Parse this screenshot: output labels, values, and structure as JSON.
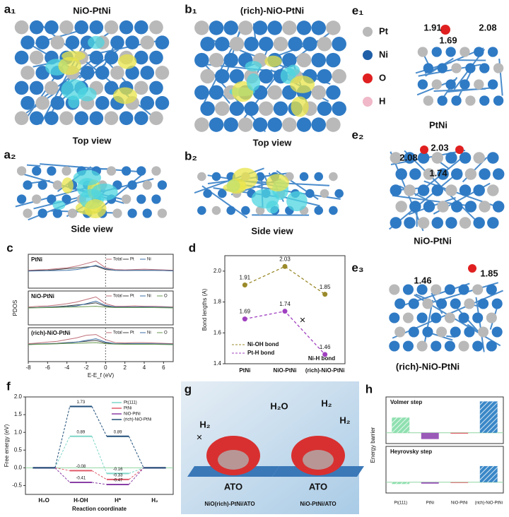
{
  "panels": {
    "a1": {
      "label": "a₁",
      "title": "NiO-PtNi",
      "caption": "Top view"
    },
    "a2": {
      "label": "a₂",
      "caption": "Side view"
    },
    "b1": {
      "label": "b₁",
      "title": "(rich)-NiO-PtNi",
      "caption": "Top view"
    },
    "b2": {
      "label": "b₂",
      "caption": "Side view"
    },
    "e1": {
      "label": "e₁",
      "legend": [
        "Pt",
        "Ni",
        "O",
        "H"
      ],
      "bonds": [
        1.91,
        1.69,
        2.08
      ],
      "caption": "PtNi"
    },
    "e2": {
      "label": "e₂",
      "bonds": [
        2.08,
        2.03,
        1.74
      ],
      "caption": "NiO-PtNi"
    },
    "e3": {
      "label": "e₃",
      "bonds": [
        1.46,
        1.85
      ],
      "caption": "(rich)-NiO-PtNi"
    },
    "g": {
      "label": "g",
      "h2_left": "H₂",
      "h2o": "H₂O",
      "h2_right": [
        "H₂",
        "H₂"
      ],
      "ato": [
        "ATO",
        "ATO"
      ],
      "captions": [
        "NiO(rich)-PtNi/ATO",
        "NiO-PtNi/ATO"
      ]
    }
  },
  "chart_data": [
    {
      "type": "line",
      "label": "c",
      "title": "PtNi",
      "x": [
        -8,
        -7,
        -6,
        -5,
        -4,
        -3,
        -2,
        -1,
        0,
        1,
        2,
        3,
        4,
        5,
        6,
        7
      ],
      "xlim": [
        -8,
        7
      ],
      "ylim": [
        -1,
        1
      ],
      "series": [
        {
          "name": "Total",
          "color": "#c0707a",
          "values": [
            0.05,
            0.08,
            0.1,
            0.15,
            0.2,
            0.3,
            0.45,
            0.6,
            0.2,
            0.1,
            0.08,
            0.1,
            0.12,
            0.1,
            0.08,
            0.05
          ]
        },
        {
          "name": "Pt",
          "color": "#444444",
          "values": [
            0.02,
            0.04,
            0.05,
            0.1,
            0.15,
            0.2,
            0.25,
            0.3,
            0.1,
            0.05,
            0.04,
            0.05,
            0.05,
            0.05,
            0.04,
            0.03
          ]
        },
        {
          "name": "Ni",
          "color": "#3a6ea5",
          "values": [
            0.01,
            0.02,
            0.03,
            0.04,
            0.05,
            0.1,
            0.2,
            0.35,
            0.15,
            0.05,
            0.04,
            0.05,
            0.06,
            0.05,
            0.04,
            0.02
          ]
        }
      ]
    },
    {
      "type": "line",
      "title": "NiO-PtNi",
      "ylabel": "PDOS",
      "x": [
        -8,
        -7,
        -6,
        -5,
        -4,
        -3,
        -2,
        -1,
        0,
        1,
        2,
        3,
        4,
        5,
        6,
        7
      ],
      "xlim": [
        -8,
        7
      ],
      "ylim": [
        -1,
        1
      ],
      "series": [
        {
          "name": "Total",
          "color": "#c0707a",
          "values": [
            0.05,
            0.1,
            0.12,
            0.18,
            0.25,
            0.35,
            0.5,
            0.65,
            0.25,
            0.1,
            0.1,
            0.12,
            0.1,
            0.1,
            0.08,
            0.05
          ]
        },
        {
          "name": "Pt",
          "color": "#444444",
          "values": [
            0.02,
            0.03,
            0.05,
            0.08,
            0.12,
            0.18,
            0.22,
            0.3,
            0.1,
            0.05,
            0.05,
            0.05,
            0.05,
            0.04,
            0.04,
            0.03
          ]
        },
        {
          "name": "Ni",
          "color": "#3a6ea5",
          "values": [
            0.01,
            0.02,
            0.04,
            0.05,
            0.08,
            0.12,
            0.25,
            0.4,
            0.15,
            0.06,
            0.05,
            0.05,
            0.06,
            0.05,
            0.04,
            0.02
          ]
        },
        {
          "name": "O",
          "color": "#6a9a50",
          "values": [
            0.0,
            0.01,
            0.02,
            0.03,
            0.05,
            0.06,
            0.08,
            0.1,
            0.05,
            0.02,
            0.02,
            0.02,
            0.02,
            0.02,
            0.01,
            0.0
          ]
        }
      ]
    },
    {
      "type": "line",
      "title": "(rich)-NiO-PtNi",
      "xlabel": "E-E_f (eV)",
      "x": [
        -8,
        -7,
        -6,
        -5,
        -4,
        -3,
        -2,
        -1,
        0,
        1,
        2,
        3,
        4,
        5,
        6,
        7
      ],
      "xlim": [
        -8,
        7
      ],
      "ylim": [
        -1,
        1
      ],
      "xticks": [
        -8,
        -6,
        -4,
        -2,
        0,
        2,
        4,
        6
      ],
      "series": [
        {
          "name": "Total",
          "color": "#c0707a",
          "values": [
            0.06,
            0.1,
            0.15,
            0.2,
            0.3,
            0.4,
            0.55,
            0.6,
            0.3,
            0.12,
            0.1,
            0.12,
            0.12,
            0.1,
            0.08,
            0.06
          ]
        },
        {
          "name": "Pt",
          "color": "#444444",
          "values": [
            0.02,
            0.04,
            0.06,
            0.08,
            0.12,
            0.16,
            0.2,
            0.25,
            0.1,
            0.05,
            0.05,
            0.05,
            0.05,
            0.04,
            0.04,
            0.03
          ]
        },
        {
          "name": "Ni",
          "color": "#3a6ea5",
          "values": [
            0.01,
            0.03,
            0.05,
            0.06,
            0.1,
            0.15,
            0.25,
            0.35,
            0.15,
            0.06,
            0.05,
            0.06,
            0.06,
            0.05,
            0.04,
            0.02
          ]
        },
        {
          "name": "O",
          "color": "#6a9a50",
          "values": [
            0.0,
            0.02,
            0.03,
            0.05,
            0.07,
            0.08,
            0.1,
            0.12,
            0.06,
            0.03,
            0.02,
            0.02,
            0.02,
            0.02,
            0.01,
            0.0
          ]
        }
      ]
    },
    {
      "type": "line",
      "label": "d",
      "ylabel": "Bond lengths (A)",
      "categories": [
        "PtNi",
        "NiO-PtNi",
        "(rich)-NiO-PtNi"
      ],
      "ylim": [
        1.4,
        2.1
      ],
      "yticks": [
        1.4,
        1.6,
        1.8,
        {
          "value": 2,
          "label": "2.0"
        }
      ],
      "series": [
        {
          "name": "Ni-OH bond",
          "color": "#9a8a2a",
          "values": [
            1.91,
            2.03,
            1.85
          ]
        },
        {
          "name": "Pt-H   bond",
          "color": "#a040c0",
          "values": [
            1.69,
            1.74,
            1.46
          ]
        }
      ],
      "annotation": "Ni-H bond"
    },
    {
      "type": "energy",
      "label": "f",
      "xlabel": "Reaction coordinate",
      "ylabel": "Free energy (eV)",
      "categories": [
        "H₂O",
        "H-OH",
        "H*",
        "H₂"
      ],
      "ylim": [
        -0.75,
        2.0
      ],
      "yticks": [
        -0.5,
        {
          "value": 0,
          "label": "0.0"
        },
        0.5,
        {
          "value": 1,
          "label": "1.0"
        },
        1.5,
        {
          "value": 2,
          "label": "2.0"
        }
      ],
      "series": [
        {
          "name": "Pt(111)",
          "color": "#7fd6c8",
          "values": [
            0,
            0.89,
            -0.16,
            0
          ]
        },
        {
          "name": "PtNi",
          "color": "#e05a6a",
          "values": [
            0,
            -0.08,
            -0.33,
            0
          ]
        },
        {
          "name": "NiO-PtNi",
          "color": "#8a3fa6",
          "values": [
            0,
            -0.41,
            -0.47,
            0
          ]
        },
        {
          "name": "(rich)-NiO-PtNi",
          "color": "#1f4e79",
          "values": [
            0,
            1.73,
            0.89,
            0
          ]
        }
      ]
    },
    {
      "type": "bar",
      "label": "h",
      "ylabel": "Energy barrier",
      "categories": [
        "Pt(111)",
        "PtNi",
        "NiO-PtNi",
        "(rich)-NiO-PtNi"
      ],
      "colors": [
        "#8fe0b0",
        "#9a5ab8",
        "#e0606a",
        "#3a88c8"
      ],
      "hatch": [
        true,
        false,
        false,
        true
      ],
      "ylim": [
        -0.6,
        2.0
      ],
      "series": [
        {
          "name": "Volmer step",
          "values": [
            0.85,
            -0.35,
            -0.05,
            1.75
          ]
        },
        {
          "name": "Heyrovsky step",
          "values": [
            -0.1,
            -0.08,
            -0.04,
            0.9
          ]
        }
      ]
    }
  ]
}
